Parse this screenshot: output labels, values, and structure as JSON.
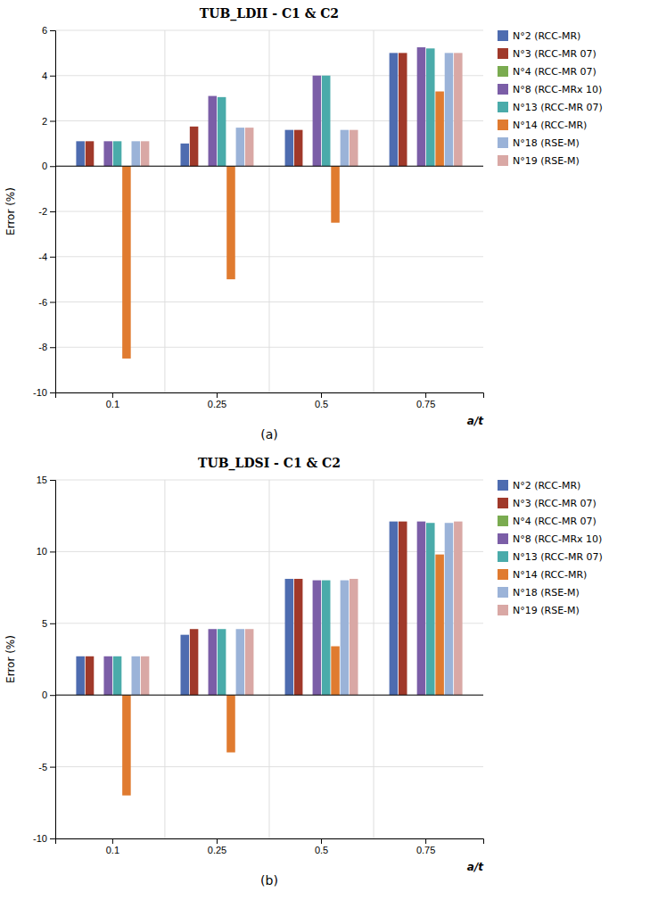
{
  "chart_data": [
    {
      "type": "bar",
      "title": "TUB_LDII - C1 & C2",
      "x_label": "a/t",
      "y_label": "Error (%)",
      "annotations": [
        "(a)"
      ],
      "categories": [
        "0.1",
        "0.25",
        "0.5",
        "0.75"
      ],
      "series": [
        {
          "name": "N°2 (RCC-MR)",
          "color": "#4E6CB0",
          "values": [
            1.1,
            1.0,
            1.6,
            5.0
          ]
        },
        {
          "name": "N°3 (RCC-MR 07)",
          "color": "#A0392A",
          "values": [
            1.1,
            1.75,
            1.6,
            5.0
          ]
        },
        {
          "name": "N°4 (RCC-MR 07)",
          "color": "#7AAB50",
          "values": [
            0.0,
            0.0,
            0.0,
            0.0
          ]
        },
        {
          "name": "N°8 (RCC-MRx 10)",
          "color": "#7B5EA7",
          "values": [
            1.1,
            3.1,
            4.0,
            5.25
          ]
        },
        {
          "name": "N°13 (RCC-MR 07)",
          "color": "#4AABAA",
          "values": [
            1.1,
            3.05,
            4.0,
            5.2
          ]
        },
        {
          "name": "N°14 (RCC-MR)",
          "color": "#E07B30",
          "values": [
            -8.5,
            -5.0,
            -2.5,
            3.3
          ]
        },
        {
          "name": "N°18 (RSE-M)",
          "color": "#9BB3D8",
          "values": [
            1.1,
            1.7,
            1.6,
            5.0
          ]
        },
        {
          "name": "N°19 (RSE-M)",
          "color": "#D9A8A5",
          "values": [
            1.1,
            1.7,
            1.6,
            5.0
          ]
        }
      ],
      "ylim": [
        -10,
        6
      ],
      "yticks": [
        -10,
        -8,
        -6,
        -4,
        -2,
        0,
        2,
        4,
        6
      ],
      "grid": true,
      "legend": "right"
    },
    {
      "type": "bar",
      "title": "TUB_LDSI - C1 & C2",
      "x_label": "a/t",
      "y_label": "Error (%)",
      "annotations": [
        "(b)"
      ],
      "categories": [
        "0.1",
        "0.25",
        "0.5",
        "0.75"
      ],
      "series": [
        {
          "name": "N°2 (RCC-MR)",
          "color": "#4E6CB0",
          "values": [
            2.7,
            4.2,
            8.1,
            12.1
          ]
        },
        {
          "name": "N°3 (RCC-MR 07)",
          "color": "#A0392A",
          "values": [
            2.7,
            4.6,
            8.1,
            12.1
          ]
        },
        {
          "name": "N°4 (RCC-MR 07)",
          "color": "#7AAB50",
          "values": [
            0.0,
            0.0,
            0.0,
            0.0
          ]
        },
        {
          "name": "N°8 (RCC-MRx 10)",
          "color": "#7B5EA7",
          "values": [
            2.7,
            4.6,
            8.0,
            12.1
          ]
        },
        {
          "name": "N°13 (RCC-MR 07)",
          "color": "#4AABAA",
          "values": [
            2.7,
            4.6,
            8.0,
            12.0
          ]
        },
        {
          "name": "N°14 (RCC-MR)",
          "color": "#E07B30",
          "values": [
            -7.0,
            -4.0,
            3.4,
            9.8
          ]
        },
        {
          "name": "N°18 (RSE-M)",
          "color": "#9BB3D8",
          "values": [
            2.7,
            4.6,
            8.0,
            12.0
          ]
        },
        {
          "name": "N°19 (RSE-M)",
          "color": "#D9A8A5",
          "values": [
            2.7,
            4.6,
            8.1,
            12.1
          ]
        }
      ],
      "ylim": [
        -10,
        15
      ],
      "yticks": [
        -10,
        -5,
        0,
        5,
        10,
        15
      ],
      "grid": true,
      "legend": "right"
    }
  ]
}
